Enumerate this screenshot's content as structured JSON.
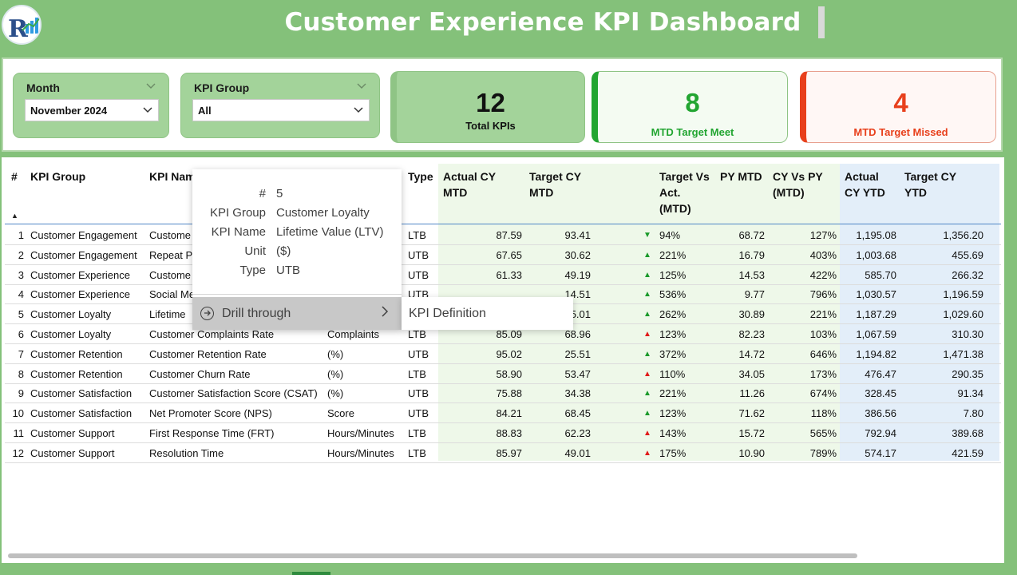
{
  "header": {
    "title": "Customer Experience KPI Dashboard"
  },
  "filters": {
    "month": {
      "label": "Month",
      "value": "November 2024"
    },
    "kpi_group": {
      "label": "KPI Group",
      "value": "All"
    }
  },
  "cards": {
    "total": {
      "value": "12",
      "label": "Total KPIs",
      "color": "#111111"
    },
    "met": {
      "value": "8",
      "label": "MTD Target Meet",
      "color": "#22a531"
    },
    "missed": {
      "value": "4",
      "label": "MTD Target Missed",
      "color": "#e8401c"
    }
  },
  "table": {
    "headers": {
      "num": "#",
      "group": "KPI Group",
      "name": "KPI Nam",
      "type": "Type",
      "actual_mtd": [
        "Actual CY",
        "MTD"
      ],
      "target_mtd": [
        "Target CY",
        "MTD"
      ],
      "tva": [
        "Target Vs",
        "Act.",
        "(MTD)"
      ],
      "py_mtd": "PY MTD",
      "cy_py": [
        "CY Vs PY",
        "(MTD)"
      ],
      "actual_ytd": [
        "Actual",
        "CY YTD"
      ],
      "target_ytd": [
        "Target CY",
        "YTD"
      ]
    },
    "rows": [
      {
        "n": "1",
        "group": "Customer Engagement",
        "name": "Custome",
        "unit": "",
        "type": "LTB",
        "actual": "87.59",
        "target": "93.41",
        "dir": "down",
        "tva": "94%",
        "py": "68.72",
        "cypy": "127%",
        "aytd": "1,195.08",
        "tytd": "1,356.20"
      },
      {
        "n": "2",
        "group": "Customer Engagement",
        "name": "Repeat P",
        "unit": "",
        "type": "UTB",
        "actual": "67.65",
        "target": "30.62",
        "dir": "up-green",
        "tva": "221%",
        "py": "16.79",
        "cypy": "403%",
        "aytd": "1,003.68",
        "tytd": "455.69"
      },
      {
        "n": "3",
        "group": "Customer Experience",
        "name": "Custome",
        "unit": "",
        "type": "UTB",
        "actual": "61.33",
        "target": "49.19",
        "dir": "up-green",
        "tva": "125%",
        "py": "14.53",
        "cypy": "422%",
        "aytd": "585.70",
        "tytd": "266.32"
      },
      {
        "n": "4",
        "group": "Customer Experience",
        "name": "Social Me",
        "unit": "",
        "type": "UTB",
        "actual": "",
        "target": "14.51",
        "dir": "up-green",
        "tva": "536%",
        "py": "9.77",
        "cypy": "796%",
        "aytd": "1,030.57",
        "tytd": "1,196.59"
      },
      {
        "n": "5",
        "group": "Customer Loyalty",
        "name": "Lifetime",
        "unit": "",
        "type": "",
        "actual": "",
        "target": "5.01",
        "dir": "up-green",
        "tva": "262%",
        "py": "30.89",
        "cypy": "221%",
        "aytd": "1,187.29",
        "tytd": "1,029.60"
      },
      {
        "n": "6",
        "group": "Customer Loyalty",
        "name": "Customer Complaints Rate",
        "unit": "Complaints",
        "type": "LTB",
        "actual": "85.09",
        "target": "68.96",
        "dir": "up-red",
        "tva": "123%",
        "py": "82.23",
        "cypy": "103%",
        "aytd": "1,067.59",
        "tytd": "310.30"
      },
      {
        "n": "7",
        "group": "Customer Retention",
        "name": "Customer Retention Rate",
        "unit": "(%)",
        "type": "UTB",
        "actual": "95.02",
        "target": "25.51",
        "dir": "up-green",
        "tva": "372%",
        "py": "14.72",
        "cypy": "646%",
        "aytd": "1,194.82",
        "tytd": "1,471.38"
      },
      {
        "n": "8",
        "group": "Customer Retention",
        "name": "Customer Churn Rate",
        "unit": " (%)",
        "type": "LTB",
        "actual": "58.90",
        "target": "53.47",
        "dir": "up-red",
        "tva": "110%",
        "py": "34.05",
        "cypy": "173%",
        "aytd": "476.47",
        "tytd": "290.35"
      },
      {
        "n": "9",
        "group": "Customer Satisfaction",
        "name": "Customer Satisfaction Score (CSAT)",
        "unit": " (%)",
        "type": "UTB",
        "actual": "75.88",
        "target": "34.38",
        "dir": "up-green",
        "tva": "221%",
        "py": "11.26",
        "cypy": "674%",
        "aytd": "328.45",
        "tytd": "91.34"
      },
      {
        "n": "10",
        "group": "Customer Satisfaction",
        "name": "Net Promoter Score (NPS)",
        "unit": "Score",
        "type": "UTB",
        "actual": "84.21",
        "target": "68.45",
        "dir": "up-green",
        "tva": "123%",
        "py": "71.62",
        "cypy": "118%",
        "aytd": "386.56",
        "tytd": "7.80"
      },
      {
        "n": "11",
        "group": "Customer Support",
        "name": "First Response Time (FRT)",
        "unit": "Hours/Minutes",
        "type": "LTB",
        "actual": "88.83",
        "target": "62.23",
        "dir": "up-red",
        "tva": "143%",
        "py": "15.72",
        "cypy": "565%",
        "aytd": "792.94",
        "tytd": "389.68"
      },
      {
        "n": "12",
        "group": "Customer Support",
        "name": "Resolution Time",
        "unit": "Hours/Minutes",
        "type": "LTB",
        "actual": "85.97",
        "target": "49.01",
        "dir": "up-red",
        "tva": "175%",
        "py": "10.90",
        "cypy": "789%",
        "aytd": "574.17",
        "tytd": "421.59"
      }
    ]
  },
  "tooltip": {
    "fields": [
      {
        "key": "#",
        "value": "5"
      },
      {
        "key": "KPI Group",
        "value": "Customer Loyalty"
      },
      {
        "key": "KPI Name",
        "value": "Lifetime Value (LTV)"
      },
      {
        "key": "Unit",
        "value": "($)"
      },
      {
        "key": "Type",
        "value": "UTB"
      }
    ],
    "drill_label": "Drill through",
    "submenu_label": "KPI Definition"
  },
  "colors": {
    "up_green": "#1a9a2a",
    "up_red": "#e01a1a",
    "down_green": "#1a9a2a"
  }
}
